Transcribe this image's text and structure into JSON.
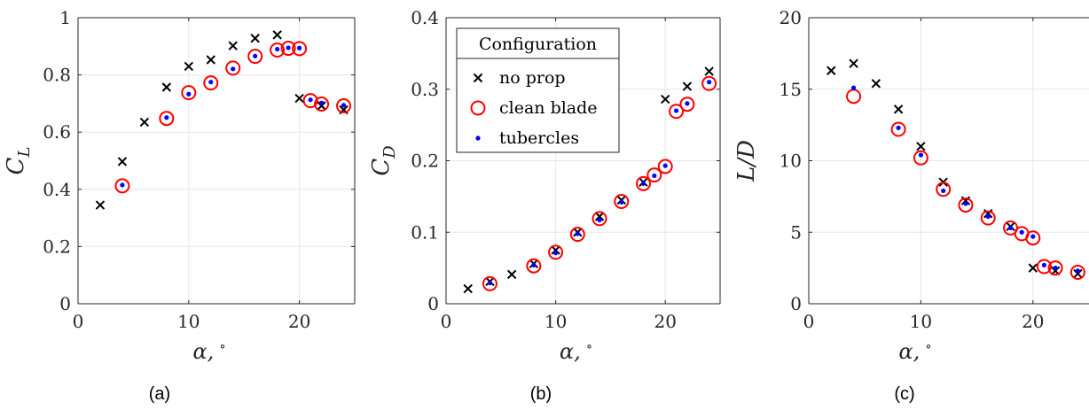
{
  "colors": {
    "no_prop": "#000000",
    "clean_blade": "#ff0000",
    "tubercles": "#0000ff",
    "grid": "#e6e6e6",
    "axis": "#262626"
  },
  "legend": {
    "title": "Configuration",
    "entries": [
      "no prop",
      "clean blade",
      "tubercles"
    ],
    "panel": 1,
    "placement": "top-left"
  },
  "chart_data": [
    {
      "type": "scatter",
      "panel_label": "(a)",
      "ylabel_main": "C",
      "ylabel_sub": "L",
      "xlabel_main": "α,",
      "xlabel_sup": "∘",
      "xlim": [
        0,
        25
      ],
      "ylim": [
        0,
        1
      ],
      "xticks": [
        0,
        10,
        20
      ],
      "yticks": [
        0,
        0.2,
        0.4,
        0.6,
        0.8,
        1
      ],
      "ytick_labels": [
        "0",
        "0.2",
        "0.4",
        "0.6",
        "0.8",
        "1"
      ],
      "grid": true,
      "series": [
        {
          "name": "no prop",
          "marker": "x",
          "x": [
            2,
            4,
            6,
            8,
            10,
            12,
            14,
            16,
            18,
            20,
            22,
            24
          ],
          "y": [
            0.345,
            0.497,
            0.635,
            0.757,
            0.83,
            0.853,
            0.902,
            0.928,
            0.94,
            0.718,
            0.692,
            0.678
          ]
        },
        {
          "name": "clean blade",
          "marker": "o",
          "x": [
            4,
            8,
            10,
            12,
            14,
            16,
            18,
            19,
            20,
            21,
            22,
            24
          ],
          "y": [
            0.412,
            0.648,
            0.738,
            0.772,
            0.824,
            0.865,
            0.887,
            0.893,
            0.892,
            0.71,
            0.698,
            0.692
          ]
        },
        {
          "name": "tubercles",
          "marker": ".",
          "x": [
            4,
            8,
            10,
            12,
            14,
            16,
            18,
            19,
            20,
            21,
            22,
            24
          ],
          "y": [
            0.415,
            0.651,
            0.733,
            0.775,
            0.821,
            0.866,
            0.89,
            0.895,
            0.894,
            0.713,
            0.702,
            0.694
          ]
        }
      ]
    },
    {
      "type": "scatter",
      "panel_label": "(b)",
      "ylabel_main": "C",
      "ylabel_sub": "D",
      "xlabel_main": "α,",
      "xlabel_sup": "∘",
      "xlim": [
        0,
        25
      ],
      "ylim": [
        0,
        0.4
      ],
      "xticks": [
        0,
        10,
        20
      ],
      "yticks": [
        0,
        0.1,
        0.2,
        0.3,
        0.4
      ],
      "ytick_labels": [
        "0",
        "0.1",
        "0.2",
        "0.3",
        "0.4"
      ],
      "grid": true,
      "series": [
        {
          "name": "no prop",
          "marker": "x",
          "x": [
            2,
            4,
            6,
            8,
            10,
            12,
            14,
            16,
            18,
            20,
            22,
            24
          ],
          "y": [
            0.021,
            0.031,
            0.041,
            0.056,
            0.075,
            0.1,
            0.122,
            0.145,
            0.17,
            0.286,
            0.304,
            0.325
          ]
        },
        {
          "name": "clean blade",
          "marker": "o",
          "x": [
            4,
            8,
            10,
            12,
            14,
            16,
            18,
            19,
            20,
            21,
            22,
            24
          ],
          "y": [
            0.028,
            0.053,
            0.072,
            0.097,
            0.119,
            0.143,
            0.168,
            0.18,
            0.192,
            0.269,
            0.279,
            0.308
          ]
        },
        {
          "name": "tubercles",
          "marker": ".",
          "x": [
            4,
            8,
            10,
            12,
            14,
            16,
            18,
            19,
            20,
            21,
            22,
            24
          ],
          "y": [
            0.029,
            0.054,
            0.071,
            0.098,
            0.117,
            0.142,
            0.168,
            0.179,
            0.193,
            0.27,
            0.28,
            0.31
          ]
        }
      ]
    },
    {
      "type": "scatter",
      "panel_label": "(c)",
      "ylabel_main": "L/D",
      "ylabel_sub": "",
      "xlabel_main": "α,",
      "xlabel_sup": "∘",
      "xlim": [
        0,
        25
      ],
      "ylim": [
        0,
        20
      ],
      "xticks": [
        0,
        10,
        20
      ],
      "yticks": [
        0,
        5,
        10,
        15,
        20
      ],
      "ytick_labels": [
        "0",
        "5",
        "10",
        "15",
        "20"
      ],
      "grid": true,
      "series": [
        {
          "name": "no prop",
          "marker": "x",
          "x": [
            2,
            4,
            6,
            8,
            10,
            12,
            14,
            16,
            18,
            20,
            22,
            24
          ],
          "y": [
            16.3,
            16.8,
            15.4,
            13.6,
            11.0,
            8.5,
            7.2,
            6.3,
            5.4,
            2.5,
            2.3,
            2.1
          ]
        },
        {
          "name": "clean blade",
          "marker": "o",
          "x": [
            4,
            8,
            10,
            12,
            14,
            16,
            18,
            19,
            20,
            21,
            22,
            24
          ],
          "y": [
            14.5,
            12.2,
            10.2,
            8.0,
            6.9,
            6.0,
            5.3,
            4.9,
            4.6,
            2.6,
            2.5,
            2.2
          ]
        },
        {
          "name": "tubercles",
          "marker": ".",
          "x": [
            4,
            8,
            10,
            12,
            14,
            16,
            18,
            19,
            20,
            21,
            22,
            24
          ],
          "y": [
            15.1,
            12.3,
            10.4,
            7.9,
            7.0,
            6.1,
            5.3,
            5.0,
            4.7,
            2.7,
            2.5,
            2.3
          ]
        }
      ]
    }
  ]
}
